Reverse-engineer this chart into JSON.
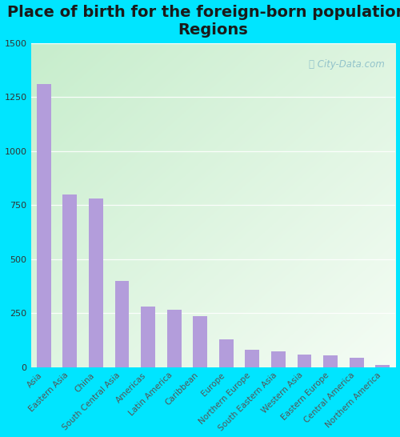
{
  "title": "Place of birth for the foreign-born population -\nRegions",
  "categories": [
    "Asia",
    "Eastern Asia",
    "China",
    "South Central Asia",
    "Americas",
    "Latin America",
    "Caribbean",
    "Europe",
    "Northern Europe",
    "South Eastern Asia",
    "Western Asia",
    "Eastern Europe",
    "Central America",
    "Northern America"
  ],
  "values": [
    1310,
    800,
    780,
    400,
    280,
    265,
    235,
    130,
    80,
    75,
    58,
    55,
    42,
    12
  ],
  "bar_color": "#b39ddb",
  "background_outer": "#00e5ff",
  "background_inner_topleft": "#c8e6c9",
  "background_inner_bottomright": "#f5fdf5",
  "ylim": [
    0,
    1500
  ],
  "yticks": [
    0,
    250,
    500,
    750,
    1000,
    1250,
    1500
  ],
  "title_fontsize": 14,
  "tick_fontsize": 8,
  "watermark": "City-Data.com"
}
